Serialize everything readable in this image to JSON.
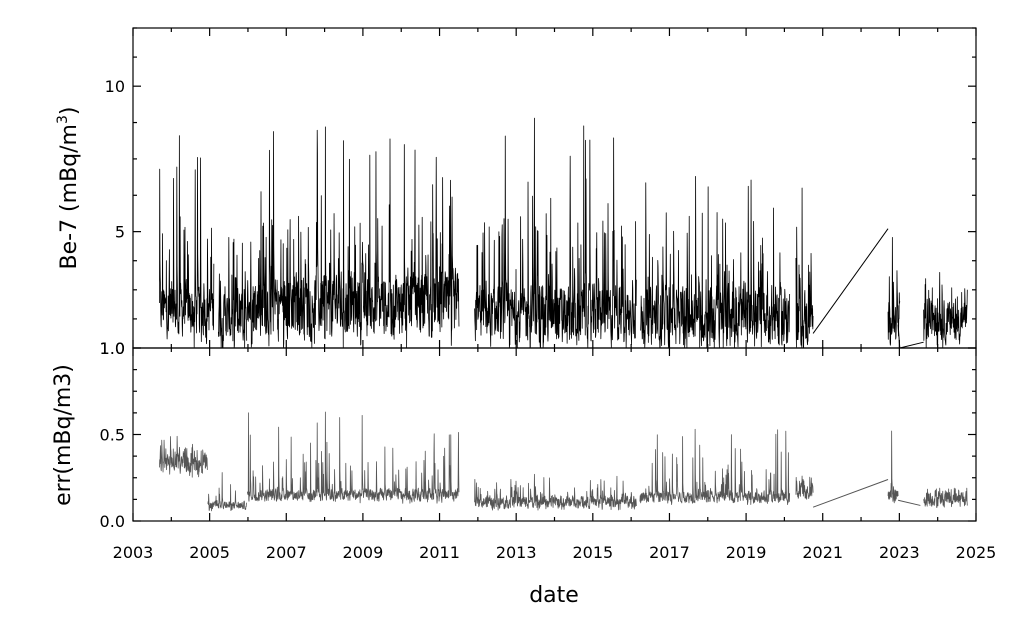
{
  "chart_data": [
    {
      "type": "line",
      "panel": "top",
      "ylabel_main": "Be-7 (mBq/m",
      "ylabel_sup": "3",
      "ylabel_close": ")",
      "xlabel": "date",
      "ylim": [
        1.0,
        12.0
      ],
      "yticks": [
        1.0,
        5,
        10
      ],
      "ytick_labels": [
        "1.0",
        "5",
        "10"
      ],
      "xlim": [
        "2003-01-01",
        "2025-01-01"
      ],
      "xticks": [
        "2003",
        "2005",
        "2007",
        "2009",
        "2011",
        "2013",
        "2015",
        "2017",
        "2019",
        "2021",
        "2023",
        "2025"
      ],
      "line_color": "#000000",
      "grid": false,
      "segments": [
        {
          "start": "2003-09-10",
          "end": "2005-02-10",
          "base": 2.3,
          "spread": 0.8,
          "peak": 8.3
        },
        {
          "start": "2005-03-25",
          "end": "2005-12-20",
          "base": 2.0,
          "spread": 0.8,
          "peak": 4.8
        },
        {
          "start": "2005-12-25",
          "end": "2011-07-05",
          "base": 2.5,
          "spread": 1.0,
          "peak": 8.6
        },
        {
          "start": "2011-12-01",
          "end": "2016-02-20",
          "base": 2.1,
          "spread": 0.9,
          "peak": 8.9
        },
        {
          "start": "2016-04-01",
          "end": "2020-02-20",
          "base": 2.1,
          "spread": 0.9,
          "peak": 6.9
        },
        {
          "start": "2020-04-20",
          "end": "2020-10-01",
          "base": 2.0,
          "spread": 0.9,
          "peak": 6.5
        }
      ],
      "links": [
        {
          "from": [
            "2020-10-01",
            1.5
          ],
          "to": [
            "2022-09-15",
            5.1
          ]
        },
        {
          "from": [
            "2022-12-20",
            1.8
          ],
          "to": [
            "2023-01-05",
            1.0
          ]
        },
        {
          "from": [
            "2023-01-05",
            1.0
          ],
          "to": [
            "2023-08-20",
            1.2
          ]
        }
      ],
      "tail_segments": [
        {
          "start": "2022-09-15",
          "end": "2023-01-05",
          "base": 1.9,
          "spread": 0.6,
          "peak": 4.8
        },
        {
          "start": "2023-08-20",
          "end": "2024-10-10",
          "base": 1.9,
          "spread": 0.6,
          "peak": 3.6
        }
      ]
    },
    {
      "type": "line",
      "panel": "bottom",
      "ylabel": "err(mBq/m3)",
      "xlabel": "date",
      "ylim": [
        0.0,
        1.0
      ],
      "yticks": [
        0.0,
        0.5,
        1.0
      ],
      "ytick_labels": [
        "0.0",
        "0.5",
        "1.0"
      ],
      "xlim": [
        "2003-01-01",
        "2025-01-01"
      ],
      "line_color": "#555555",
      "grid": false,
      "segments": [
        {
          "start": "2003-09-10",
          "end": "2004-12-10",
          "base": 0.33,
          "spread": 0.05,
          "peak": 0.49
        },
        {
          "start": "2004-12-15",
          "end": "2005-12-20",
          "base": 0.09,
          "spread": 0.02,
          "peak": 0.28
        },
        {
          "start": "2005-12-25",
          "end": "2011-07-05",
          "base": 0.15,
          "spread": 0.03,
          "peak": 0.63
        },
        {
          "start": "2011-12-01",
          "end": "2016-02-20",
          "base": 0.11,
          "spread": 0.03,
          "peak": 0.27
        },
        {
          "start": "2016-03-25",
          "end": "2020-02-20",
          "base": 0.14,
          "spread": 0.03,
          "peak": 0.53
        },
        {
          "start": "2020-04-20",
          "end": "2020-10-01",
          "base": 0.17,
          "spread": 0.04,
          "peak": 0.26
        }
      ],
      "links": [
        {
          "from": [
            "2020-10-01",
            0.08
          ],
          "to": [
            "2022-09-15",
            0.24
          ]
        },
        {
          "from": [
            "2022-12-20",
            0.12
          ],
          "to": [
            "2023-07-20",
            0.09
          ]
        }
      ],
      "tail_segments": [
        {
          "start": "2022-09-15",
          "end": "2022-12-20",
          "base": 0.14,
          "spread": 0.04,
          "peak": 0.52
        },
        {
          "start": "2023-08-20",
          "end": "2024-10-10",
          "base": 0.13,
          "spread": 0.04,
          "peak": 0.19
        }
      ]
    }
  ]
}
